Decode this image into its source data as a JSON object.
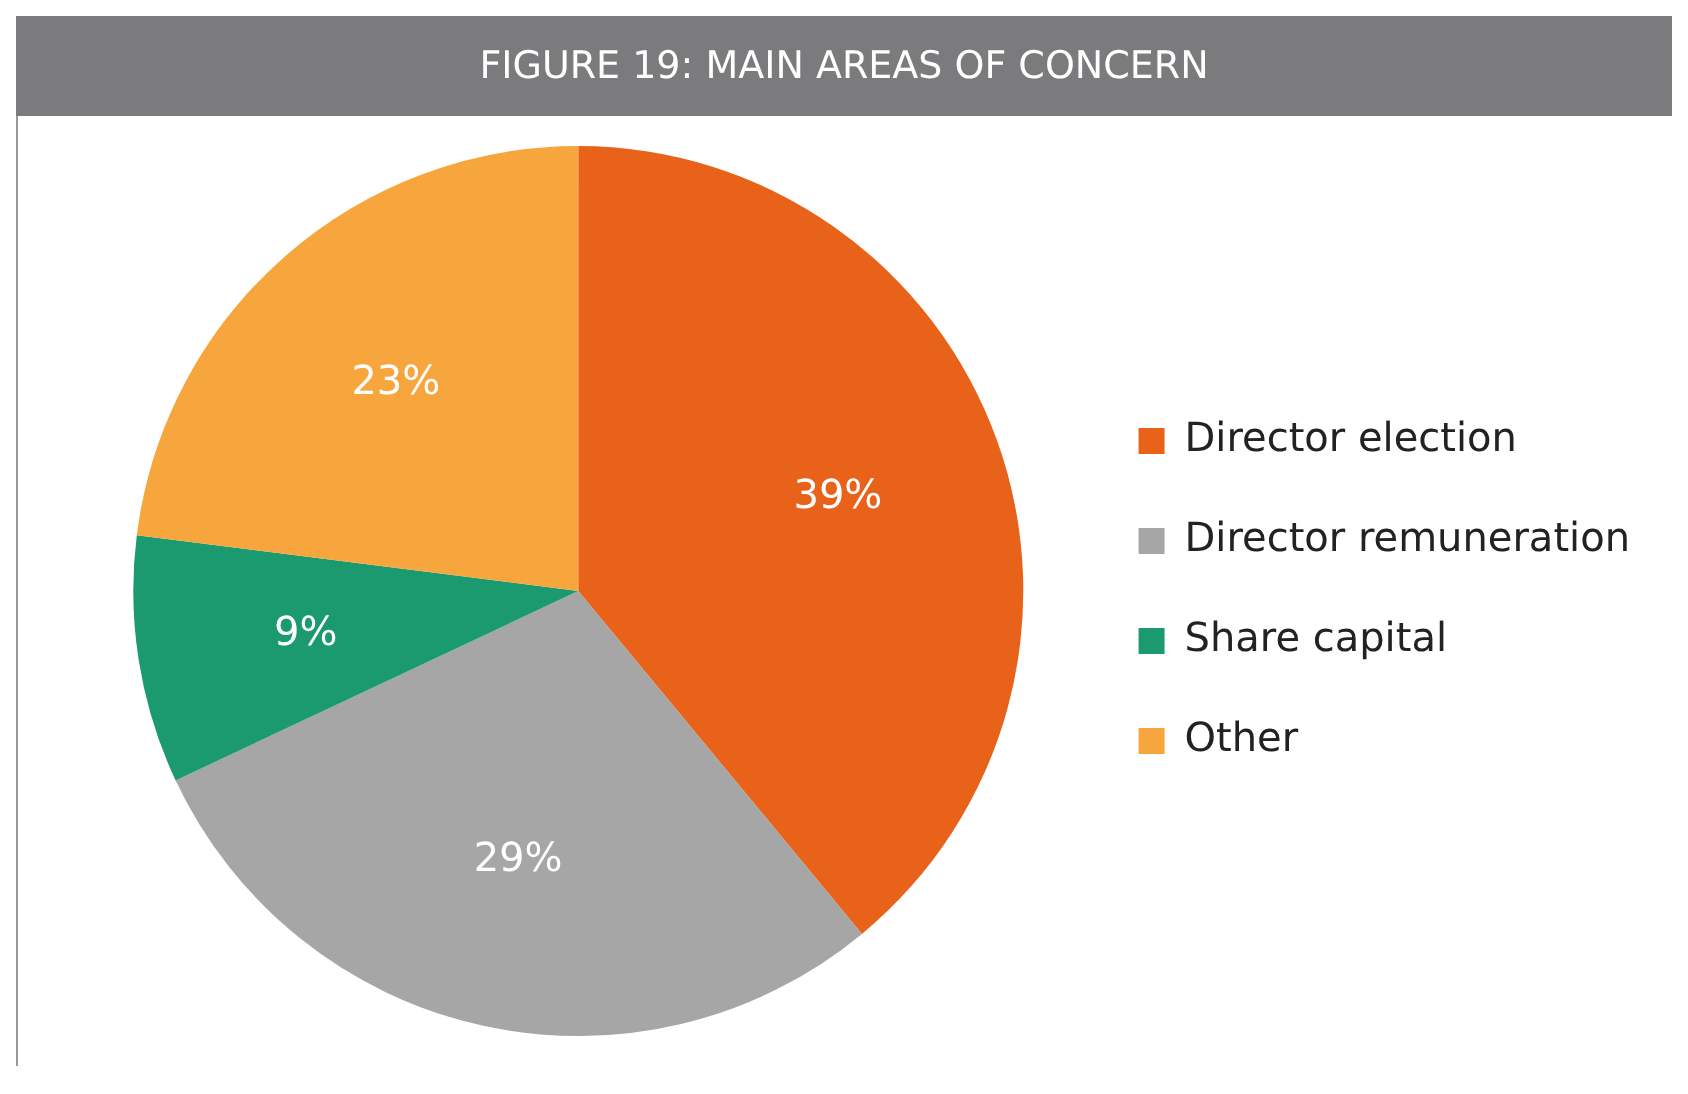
{
  "chart_data": {
    "type": "pie",
    "title": "FIGURE 19: MAIN AREAS OF CONCERN",
    "categories": [
      "Director election",
      "Director remuneration",
      "Share capital",
      "Other"
    ],
    "values": [
      39,
      29,
      9,
      23
    ],
    "colors": [
      "#e8621a",
      "#a6a6a6",
      "#1a9a6e",
      "#f7a63e"
    ],
    "value_labels": [
      "39%",
      "29%",
      "9%",
      "23%"
    ],
    "legend": "right"
  }
}
